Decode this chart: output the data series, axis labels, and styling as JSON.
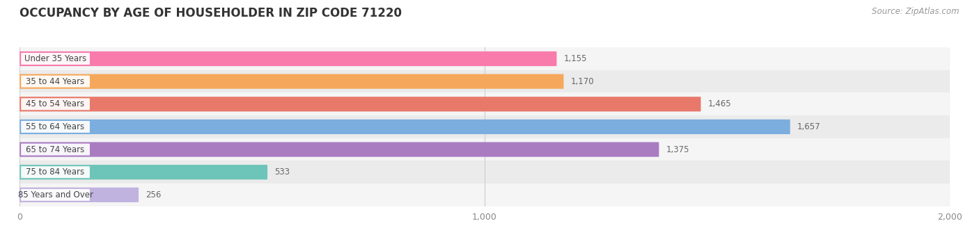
{
  "title": "OCCUPANCY BY AGE OF HOUSEHOLDER IN ZIP CODE 71220",
  "source": "Source: ZipAtlas.com",
  "categories": [
    "Under 35 Years",
    "35 to 44 Years",
    "45 to 54 Years",
    "55 to 64 Years",
    "65 to 74 Years",
    "75 to 84 Years",
    "85 Years and Over"
  ],
  "values": [
    1155,
    1170,
    1465,
    1657,
    1375,
    533,
    256
  ],
  "bar_colors": [
    "#F87BAC",
    "#F5A85C",
    "#E8796A",
    "#7BAEDE",
    "#A97CC2",
    "#6DC4B8",
    "#C0B3E0"
  ],
  "xlim": [
    0,
    2000
  ],
  "xticks": [
    0,
    1000,
    2000
  ],
  "background_color": "#FFFFFF",
  "title_fontsize": 12,
  "source_fontsize": 8.5,
  "label_fontsize": 8.5,
  "value_fontsize": 8.5,
  "bar_height": 0.65,
  "row_bg_even": "#F5F5F5",
  "row_bg_odd": "#EBEBEB"
}
